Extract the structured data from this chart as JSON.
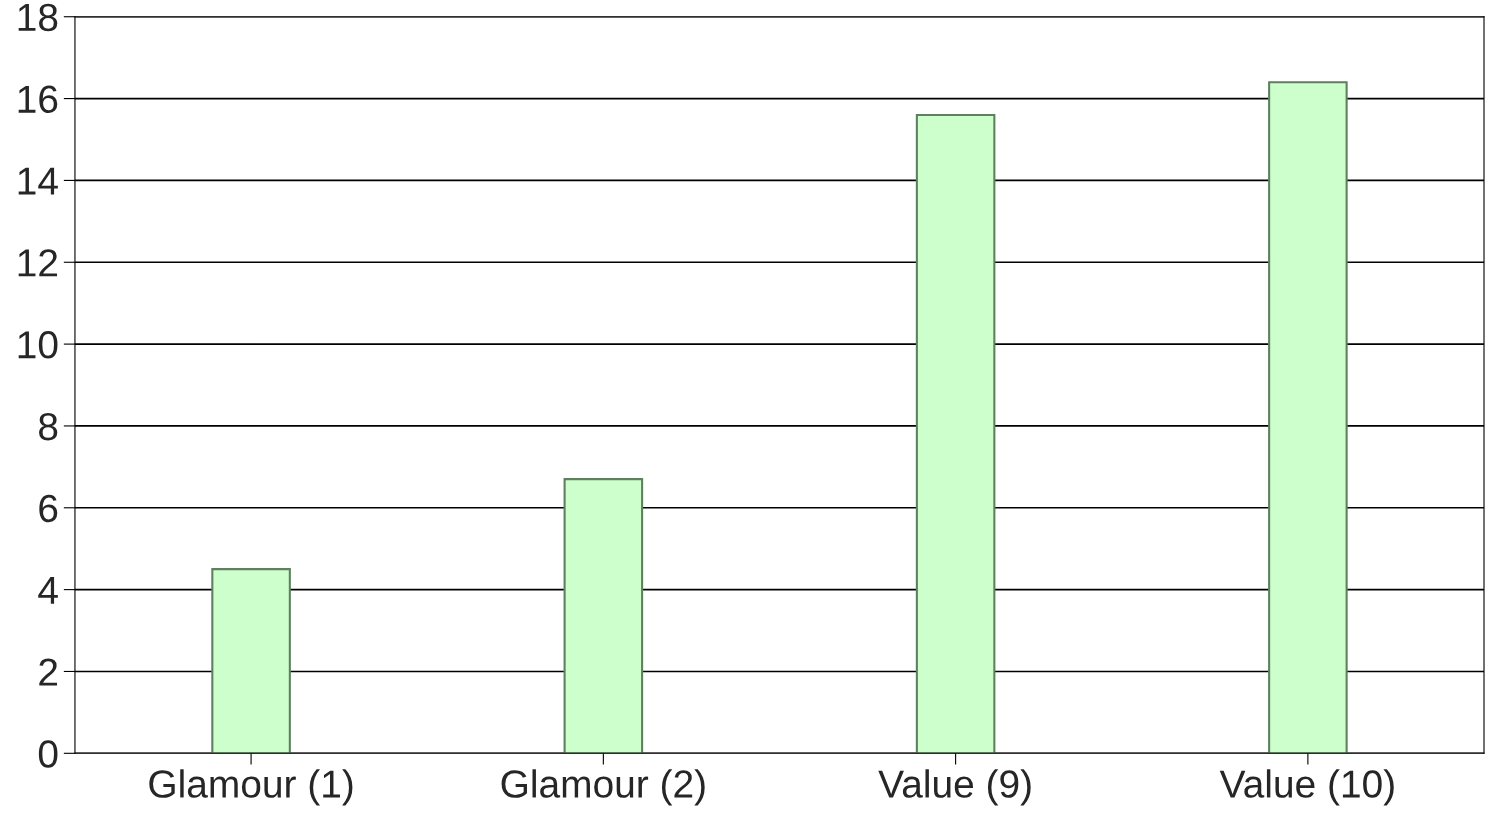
{
  "chart_data": {
    "type": "bar",
    "categories": [
      "Glamour (1)",
      "Glamour (2)",
      "Value (9)",
      "Value (10)"
    ],
    "values": [
      4.5,
      6.7,
      15.6,
      16.4
    ],
    "color": "#ccffcc",
    "ylim": [
      0,
      18
    ],
    "yticks": [
      0,
      2,
      4,
      6,
      8,
      10,
      12,
      14,
      16,
      18
    ],
    "grid": "y",
    "legend": false
  }
}
